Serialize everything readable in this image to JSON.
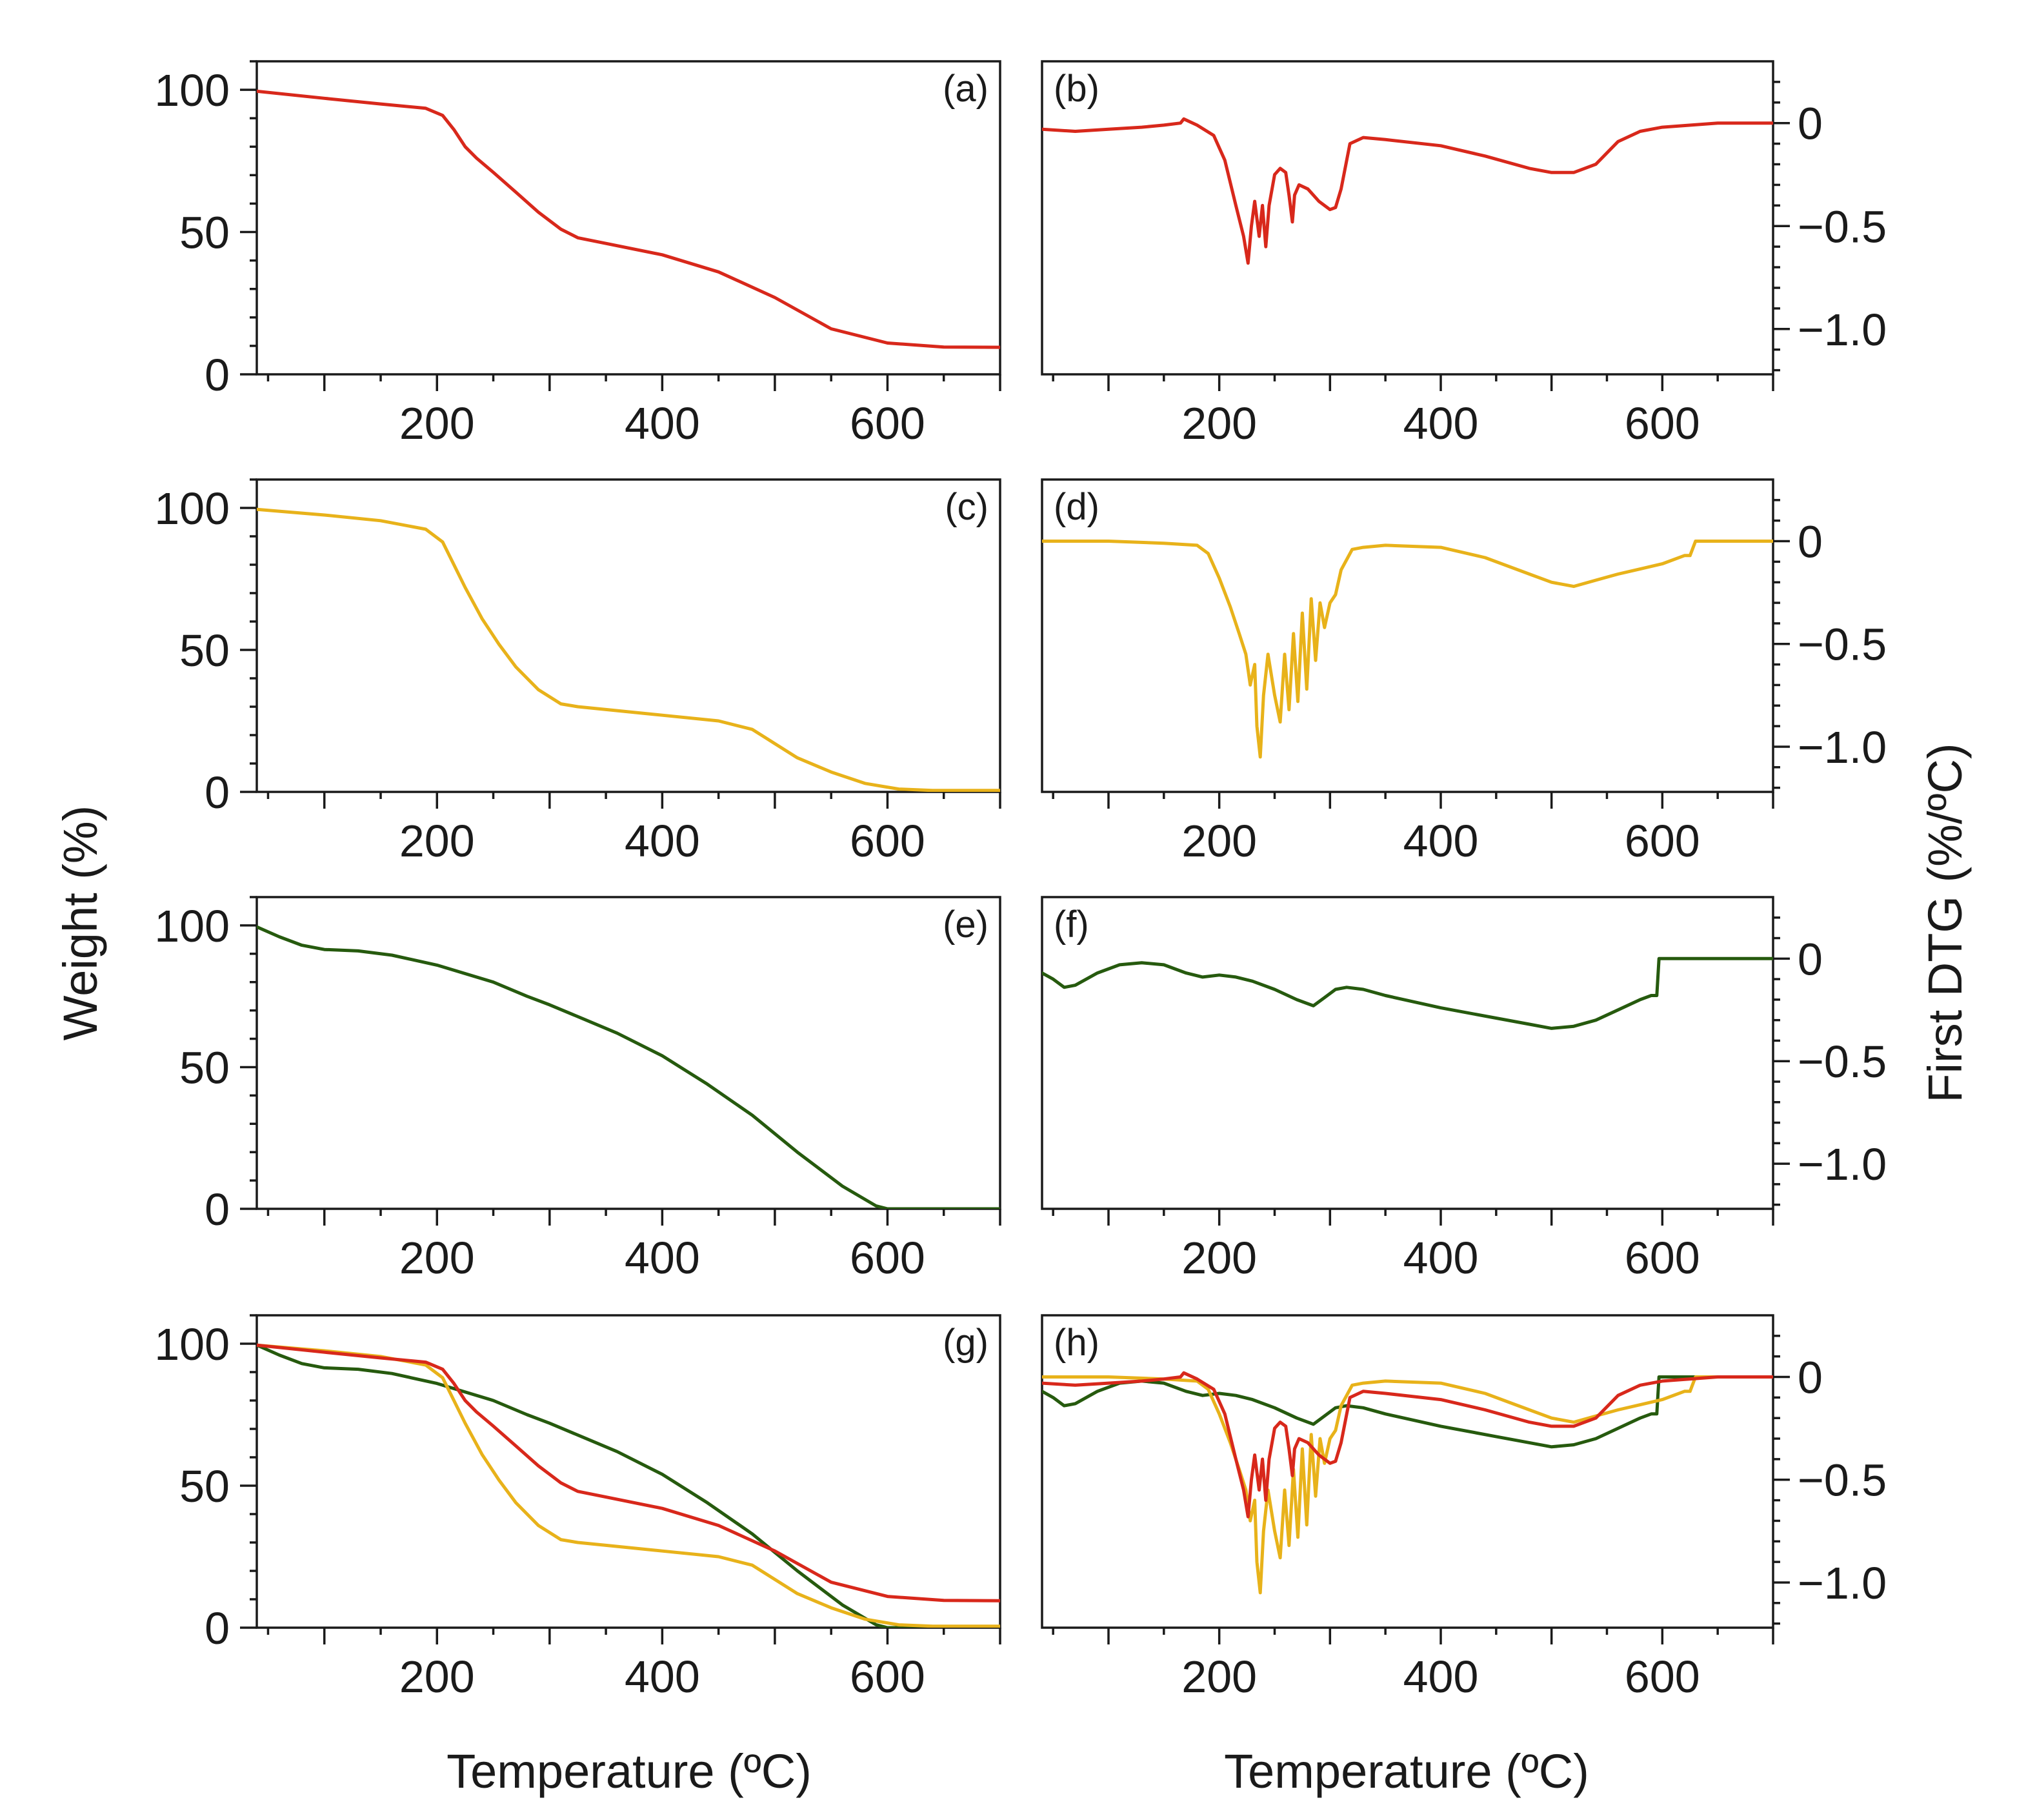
{
  "colors": {
    "axis": "#1a1a1a",
    "sample_red": "#d8281b",
    "sample_yellow": "#e8b21a",
    "sample_green": "#265a0e"
  },
  "axis_titles": {
    "weight": "Weight (%)",
    "dtg": "First DTG (%/ºC)",
    "temperature": "Temperature (ºC)"
  },
  "chart_data": [
    {
      "id": "a",
      "label": "(a)",
      "type": "line",
      "quantity": "weight",
      "xlabel": "Temperature (ºC)",
      "ylabel": "Weight (%)",
      "xlim": [
        40,
        700
      ],
      "ylim": [
        0,
        110
      ],
      "xticks": [
        200,
        400,
        600
      ],
      "yticks": [
        0,
        50,
        100
      ],
      "series": [
        {
          "name": "red",
          "color": "#d8281b",
          "x": [
            40,
            100,
            150,
            190,
            205,
            215,
            225,
            235,
            250,
            270,
            290,
            310,
            325,
            350,
            400,
            450,
            500,
            550,
            600,
            650,
            700
          ],
          "y": [
            99.5,
            97,
            95,
            93.5,
            91,
            86,
            80,
            76,
            71,
            64,
            57,
            51,
            48,
            46,
            42,
            36,
            27,
            16,
            11,
            9.6,
            9.5
          ]
        }
      ]
    },
    {
      "id": "b",
      "label": "(b)",
      "type": "line",
      "quantity": "dtg",
      "xlabel": "Temperature (ºC)",
      "ylabel": "First DTG (%/ºC)",
      "xlim": [
        40,
        700
      ],
      "ylim": [
        -1.22,
        0.3
      ],
      "xticks": [
        200,
        400,
        600
      ],
      "yticks": [
        0,
        -0.5,
        -1.0
      ],
      "ytick_labels": [
        "0",
        "−0.5",
        "−1.0"
      ],
      "series": [
        {
          "name": "red",
          "color": "#d8281b",
          "x": [
            40,
            70,
            100,
            130,
            150,
            165,
            168,
            180,
            195,
            205,
            215,
            222,
            226,
            229,
            232,
            236,
            239,
            242,
            245,
            250,
            255,
            260,
            263,
            266,
            268,
            272,
            280,
            290,
            300,
            305,
            310,
            318,
            330,
            350,
            400,
            440,
            480,
            500,
            520,
            540,
            560,
            580,
            600,
            650,
            700
          ],
          "y": [
            -0.03,
            -0.04,
            -0.03,
            -0.02,
            -0.01,
            0,
            0.02,
            -0.01,
            -0.06,
            -0.18,
            -0.4,
            -0.55,
            -0.68,
            -0.5,
            -0.38,
            -0.55,
            -0.4,
            -0.6,
            -0.4,
            -0.25,
            -0.22,
            -0.24,
            -0.35,
            -0.48,
            -0.35,
            -0.3,
            -0.32,
            -0.38,
            -0.42,
            -0.41,
            -0.32,
            -0.1,
            -0.07,
            -0.08,
            -0.11,
            -0.16,
            -0.22,
            -0.24,
            -0.24,
            -0.2,
            -0.09,
            -0.04,
            -0.02,
            0,
            0
          ]
        }
      ]
    },
    {
      "id": "c",
      "label": "(c)",
      "type": "line",
      "quantity": "weight",
      "xlabel": "Temperature (ºC)",
      "ylabel": "Weight (%)",
      "xlim": [
        40,
        700
      ],
      "ylim": [
        0,
        110
      ],
      "xticks": [
        200,
        400,
        600
      ],
      "yticks": [
        0,
        50,
        100
      ],
      "series": [
        {
          "name": "yellow",
          "color": "#e8b21a",
          "x": [
            40,
            100,
            150,
            190,
            205,
            215,
            225,
            240,
            255,
            270,
            290,
            310,
            325,
            350,
            400,
            450,
            480,
            500,
            520,
            550,
            580,
            610,
            640,
            700
          ],
          "y": [
            99.5,
            97.5,
            95.5,
            92.5,
            88,
            80,
            72,
            61,
            52,
            44,
            36,
            31,
            30,
            29,
            27,
            25,
            22,
            17,
            12,
            7,
            3,
            1,
            0.5,
            0.5
          ]
        }
      ]
    },
    {
      "id": "d",
      "label": "(d)",
      "type": "line",
      "quantity": "dtg",
      "xlabel": "Temperature (ºC)",
      "ylabel": "First DTG (%/ºC)",
      "xlim": [
        40,
        700
      ],
      "ylim": [
        -1.22,
        0.3
      ],
      "xticks": [
        200,
        400,
        600
      ],
      "yticks": [
        0,
        -0.5,
        -1.0
      ],
      "ytick_labels": [
        "0",
        "−0.5",
        "−1.0"
      ],
      "series": [
        {
          "name": "yellow",
          "color": "#e8b21a",
          "x": [
            40,
            100,
            150,
            180,
            190,
            200,
            210,
            218,
            224,
            228,
            232,
            234,
            237,
            240,
            244,
            250,
            255,
            259,
            263,
            267,
            271,
            275,
            279,
            283,
            287,
            291,
            295,
            300,
            305,
            310,
            320,
            330,
            350,
            400,
            440,
            480,
            500,
            520,
            540,
            560,
            600,
            620,
            625,
            630,
            640,
            700
          ],
          "y": [
            0,
            0,
            -0.01,
            -0.02,
            -0.06,
            -0.18,
            -0.32,
            -0.45,
            -0.55,
            -0.7,
            -0.6,
            -0.9,
            -1.05,
            -0.75,
            -0.55,
            -0.75,
            -0.88,
            -0.55,
            -0.82,
            -0.45,
            -0.78,
            -0.35,
            -0.72,
            -0.28,
            -0.58,
            -0.3,
            -0.42,
            -0.3,
            -0.26,
            -0.14,
            -0.04,
            -0.03,
            -0.02,
            -0.03,
            -0.08,
            -0.16,
            -0.2,
            -0.22,
            -0.19,
            -0.16,
            -0.11,
            -0.07,
            -0.07,
            0,
            0,
            0
          ]
        }
      ]
    },
    {
      "id": "e",
      "label": "(e)",
      "type": "line",
      "quantity": "weight",
      "xlabel": "Temperature (ºC)",
      "ylabel": "Weight (%)",
      "xlim": [
        40,
        700
      ],
      "ylim": [
        0,
        110
      ],
      "xticks": [
        200,
        400,
        600
      ],
      "yticks": [
        0,
        50,
        100
      ],
      "series": [
        {
          "name": "green",
          "color": "#265a0e",
          "x": [
            40,
            60,
            80,
            100,
            130,
            160,
            200,
            250,
            280,
            300,
            330,
            360,
            400,
            440,
            480,
            520,
            560,
            590,
            600,
            650,
            700
          ],
          "y": [
            99.5,
            96,
            93,
            91.5,
            91,
            89.5,
            86,
            80,
            75,
            72,
            67,
            62,
            54,
            44,
            33,
            20,
            8,
            1,
            0,
            0,
            0
          ]
        }
      ]
    },
    {
      "id": "f",
      "label": "(f)",
      "type": "line",
      "quantity": "dtg",
      "xlabel": "Temperature (ºC)",
      "ylabel": "First DTG (%/ºC)",
      "xlim": [
        40,
        700
      ],
      "ylim": [
        -1.22,
        0.3
      ],
      "xticks": [
        200,
        400,
        600
      ],
      "yticks": [
        0,
        -0.5,
        -1.0
      ],
      "ytick_labels": [
        "0",
        "−0.5",
        "−1.0"
      ],
      "series": [
        {
          "name": "green",
          "color": "#265a0e",
          "x": [
            40,
            50,
            60,
            70,
            90,
            110,
            130,
            150,
            170,
            185,
            200,
            215,
            230,
            250,
            270,
            285,
            295,
            305,
            315,
            330,
            350,
            400,
            450,
            480,
            500,
            520,
            540,
            560,
            580,
            590,
            595,
            597,
            700
          ],
          "y": [
            -0.07,
            -0.1,
            -0.14,
            -0.13,
            -0.07,
            -0.03,
            -0.02,
            -0.03,
            -0.07,
            -0.09,
            -0.08,
            -0.09,
            -0.11,
            -0.15,
            -0.2,
            -0.23,
            -0.19,
            -0.15,
            -0.14,
            -0.15,
            -0.18,
            -0.24,
            -0.29,
            -0.32,
            -0.34,
            -0.33,
            -0.3,
            -0.25,
            -0.2,
            -0.18,
            -0.18,
            0,
            0
          ]
        }
      ]
    },
    {
      "id": "g",
      "label": "(g)",
      "type": "line",
      "quantity": "weight",
      "xlabel": "Temperature (ºC)",
      "ylabel": "Weight (%)",
      "xlim": [
        40,
        700
      ],
      "ylim": [
        0,
        110
      ],
      "xticks": [
        200,
        400,
        600
      ],
      "yticks": [
        0,
        50,
        100
      ],
      "series": [
        {
          "name": "green",
          "color": "#265a0e",
          "x": [
            40,
            60,
            80,
            100,
            130,
            160,
            200,
            250,
            280,
            300,
            330,
            360,
            400,
            440,
            480,
            520,
            560,
            590,
            600,
            650,
            700
          ],
          "y": [
            99.5,
            96,
            93,
            91.5,
            91,
            89.5,
            86,
            80,
            75,
            72,
            67,
            62,
            54,
            44,
            33,
            20,
            8,
            1,
            0,
            0,
            0
          ]
        },
        {
          "name": "yellow",
          "color": "#e8b21a",
          "x": [
            40,
            100,
            150,
            190,
            205,
            215,
            225,
            240,
            255,
            270,
            290,
            310,
            325,
            350,
            400,
            450,
            480,
            500,
            520,
            550,
            580,
            610,
            640,
            700
          ],
          "y": [
            99.5,
            97.5,
            95.5,
            92.5,
            88,
            80,
            72,
            61,
            52,
            44,
            36,
            31,
            30,
            29,
            27,
            25,
            22,
            17,
            12,
            7,
            3,
            1,
            0.5,
            0.5
          ]
        },
        {
          "name": "red",
          "color": "#d8281b",
          "x": [
            40,
            100,
            150,
            190,
            205,
            215,
            225,
            235,
            250,
            270,
            290,
            310,
            325,
            350,
            400,
            450,
            500,
            550,
            600,
            650,
            700
          ],
          "y": [
            99.5,
            97,
            95,
            93.5,
            91,
            86,
            80,
            76,
            71,
            64,
            57,
            51,
            48,
            46,
            42,
            36,
            27,
            16,
            11,
            9.6,
            9.5
          ]
        }
      ]
    },
    {
      "id": "h",
      "label": "(h)",
      "type": "line",
      "quantity": "dtg",
      "xlabel": "Temperature (ºC)",
      "ylabel": "First DTG (%/ºC)",
      "xlim": [
        40,
        700
      ],
      "ylim": [
        -1.22,
        0.3
      ],
      "xticks": [
        200,
        400,
        600
      ],
      "yticks": [
        0,
        -0.5,
        -1.0
      ],
      "ytick_labels": [
        "0",
        "−0.5",
        "−1.0"
      ],
      "series": [
        {
          "name": "green",
          "color": "#265a0e",
          "x": [
            40,
            50,
            60,
            70,
            90,
            110,
            130,
            150,
            170,
            185,
            200,
            215,
            230,
            250,
            270,
            285,
            295,
            305,
            315,
            330,
            350,
            400,
            450,
            480,
            500,
            520,
            540,
            560,
            580,
            590,
            595,
            597,
            700
          ],
          "y": [
            -0.07,
            -0.1,
            -0.14,
            -0.13,
            -0.07,
            -0.03,
            -0.02,
            -0.03,
            -0.07,
            -0.09,
            -0.08,
            -0.09,
            -0.11,
            -0.15,
            -0.2,
            -0.23,
            -0.19,
            -0.15,
            -0.14,
            -0.15,
            -0.18,
            -0.24,
            -0.29,
            -0.32,
            -0.34,
            -0.33,
            -0.3,
            -0.25,
            -0.2,
            -0.18,
            -0.18,
            0,
            0
          ]
        },
        {
          "name": "yellow",
          "color": "#e8b21a",
          "x": [
            40,
            100,
            150,
            180,
            190,
            200,
            210,
            218,
            224,
            228,
            232,
            234,
            237,
            240,
            244,
            250,
            255,
            259,
            263,
            267,
            271,
            275,
            279,
            283,
            287,
            291,
            295,
            300,
            305,
            310,
            320,
            330,
            350,
            400,
            440,
            480,
            500,
            520,
            540,
            560,
            600,
            620,
            625,
            630,
            640,
            700
          ],
          "y": [
            0,
            0,
            -0.01,
            -0.02,
            -0.06,
            -0.18,
            -0.32,
            -0.45,
            -0.55,
            -0.7,
            -0.6,
            -0.9,
            -1.05,
            -0.75,
            -0.55,
            -0.75,
            -0.88,
            -0.55,
            -0.82,
            -0.45,
            -0.78,
            -0.35,
            -0.72,
            -0.28,
            -0.58,
            -0.3,
            -0.42,
            -0.3,
            -0.26,
            -0.14,
            -0.04,
            -0.03,
            -0.02,
            -0.03,
            -0.08,
            -0.16,
            -0.2,
            -0.22,
            -0.19,
            -0.16,
            -0.11,
            -0.07,
            -0.07,
            0,
            0,
            0
          ]
        },
        {
          "name": "red",
          "color": "#d8281b",
          "x": [
            40,
            70,
            100,
            130,
            150,
            165,
            168,
            180,
            195,
            205,
            215,
            222,
            226,
            229,
            232,
            236,
            239,
            242,
            245,
            250,
            255,
            260,
            263,
            266,
            268,
            272,
            280,
            290,
            300,
            305,
            310,
            318,
            330,
            350,
            400,
            440,
            480,
            500,
            520,
            540,
            560,
            580,
            600,
            650,
            700
          ],
          "y": [
            -0.03,
            -0.04,
            -0.03,
            -0.02,
            -0.01,
            0,
            0.02,
            -0.01,
            -0.06,
            -0.18,
            -0.4,
            -0.55,
            -0.68,
            -0.5,
            -0.38,
            -0.55,
            -0.4,
            -0.6,
            -0.4,
            -0.25,
            -0.22,
            -0.24,
            -0.35,
            -0.48,
            -0.35,
            -0.3,
            -0.32,
            -0.38,
            -0.42,
            -0.41,
            -0.32,
            -0.1,
            -0.07,
            -0.08,
            -0.11,
            -0.16,
            -0.22,
            -0.24,
            -0.24,
            -0.2,
            -0.09,
            -0.04,
            -0.02,
            0,
            0
          ]
        }
      ]
    }
  ]
}
